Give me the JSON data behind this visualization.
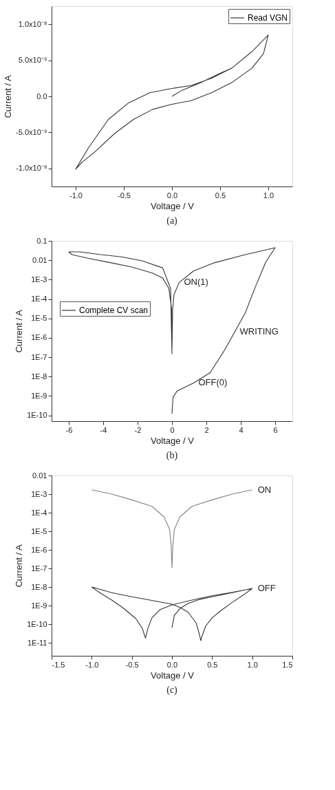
{
  "chart_data": [
    {
      "type": "line",
      "title": "(a)",
      "xlabel": "Voltage / V",
      "ylabel": "Current / A",
      "xlim": [
        -1.25,
        1.25
      ],
      "xticks": [
        {
          "value": -1,
          "label": "-1.0"
        },
        -0.5,
        {
          "value": 0,
          "label": "0.0"
        },
        0.5,
        {
          "value": 1,
          "label": "1.0"
        }
      ],
      "ylim": [
        -1.25e-08,
        1.25e-08
      ],
      "yticks": [
        {
          "value": -1e-08,
          "label": "-1.0x10⁻⁸"
        },
        {
          "value": -5e-09,
          "label": "-5.0x10⁻⁹"
        },
        {
          "value": 0,
          "label": "0.0"
        },
        {
          "value": 5e-09,
          "label": "5.0x10⁻⁹"
        },
        {
          "value": 1e-08,
          "label": "1.0x10⁻⁸"
        }
      ],
      "grid": false,
      "legend": "top right",
      "marker": "none",
      "line_style": "solid",
      "series": [
        {
          "name": "Read VGN",
          "color": "#333333",
          "x": [
            0,
            0.1,
            0.3,
            0.5,
            0.62,
            0.83,
            1,
            0.95,
            0.83,
            0.62,
            0.41,
            0.2,
            0,
            -0.2,
            -0.4,
            -0.6,
            -0.8,
            -0.93,
            -1,
            -0.87,
            -0.66,
            -0.45,
            -0.23,
            0,
            0.2,
            0.41,
            0.62,
            0.83,
            1
          ],
          "values": [
            0,
            8e-10,
            1.9e-09,
            3.2e-09,
            3.9e-09,
            6.2e-09,
            8.5e-09,
            5.9e-09,
            3.9e-09,
            1.9e-09,
            5e-10,
            -6e-10,
            -1.1e-09,
            -1.8e-09,
            -3.2e-09,
            -5.2e-09,
            -7.7e-09,
            -9.1e-09,
            -1.01e-08,
            -7.2e-09,
            -3.2e-09,
            -9e-10,
            5e-10,
            1.1e-09,
            1.5e-09,
            2.5e-09,
            3.9e-09,
            6.2e-09,
            8.5e-09
          ]
        }
      ]
    },
    {
      "type": "line",
      "title": "(b)",
      "xlabel": "Voltage / V",
      "ylabel": "Current / A",
      "log": "y",
      "xlim": [
        -7,
        7
      ],
      "xticks": [
        -6,
        -4,
        -2,
        0,
        2,
        4,
        6
      ],
      "ylim": [
        5e-11,
        0.1
      ],
      "yticks": [
        {
          "value": 1e-10,
          "label": "1E-10"
        },
        {
          "value": 1e-09,
          "label": "1E-9"
        },
        {
          "value": 1e-08,
          "label": "1E-8"
        },
        {
          "value": 1e-07,
          "label": "1E-7"
        },
        {
          "value": 1e-06,
          "label": "1E-6"
        },
        {
          "value": 1e-05,
          "label": "1E-5"
        },
        {
          "value": 0.0001,
          "label": "1E-4"
        },
        {
          "value": 0.001,
          "label": "1E-3"
        },
        {
          "value": 0.01,
          "label": "0.01"
        },
        {
          "value": 0.1,
          "label": "0.1"
        }
      ],
      "grid": false,
      "legend": "left",
      "marker": "none",
      "line_style": "solid",
      "annotations": [
        {
          "text": "ON(1)",
          "x": 0.42,
          "y": 0.00072
        },
        {
          "text": "WRITING",
          "x": 3.66,
          "y": 2.1e-06
        },
        {
          "text": "OFF(0)",
          "x": 1.26,
          "y": 4.7e-09
        }
      ],
      "series": [
        {
          "name": "Complete CV scan",
          "color": "#333333",
          "x": [
            0,
            0.06,
            0.3,
            1.26,
            2.22,
            3.06,
            3.66,
            4.26,
            4.86,
            5.46,
            6,
            4.26,
            2.46,
            1.26,
            0.42,
            0.12,
            0.04,
            0,
            0,
            -0.08,
            -0.54,
            -1.74,
            -2.94,
            -4.14,
            -5.34,
            -6,
            -5.82,
            -4.74,
            -3.54,
            -2.34,
            -1.14,
            -0.54,
            -0.18,
            -0.02,
            0
          ],
          "values": [
            1.2e-10,
            8.5e-10,
            1.8e-09,
            4.7e-09,
            1.6e-08,
            2.3e-07,
            2.1e-06,
            1.9e-05,
            0.00045,
            0.0083,
            0.044,
            0.0195,
            0.0074,
            0.0028,
            0.00072,
            0.00017,
            3e-05,
            3e-07,
            1.5e-07,
            0.00034,
            0.004,
            0.0093,
            0.015,
            0.0195,
            0.027,
            0.027,
            0.0195,
            0.012,
            0.0074,
            0.0045,
            0.0022,
            0.0012,
            0.00035,
            3e-05,
            3e-07
          ]
        }
      ]
    },
    {
      "type": "line",
      "title": "(c)",
      "xlabel": "Voltage / V",
      "ylabel": "Current / A",
      "log": "y",
      "xlim": [
        -1.5,
        1.5
      ],
      "xticks": [
        -1.5,
        {
          "value": -1,
          "label": "-1.0"
        },
        -0.5,
        {
          "value": 0,
          "label": "0.0"
        },
        0.5,
        {
          "value": 1,
          "label": "1.0"
        },
        1.5
      ],
      "ylim": [
        2e-12,
        0.01
      ],
      "yticks": [
        {
          "value": 1e-11,
          "label": "1E-11"
        },
        {
          "value": 1e-10,
          "label": "1E-10"
        },
        {
          "value": 1e-09,
          "label": "1E-9"
        },
        {
          "value": 1e-08,
          "label": "1E-8"
        },
        {
          "value": 1e-07,
          "label": "1E-7"
        },
        {
          "value": 1e-06,
          "label": "1E-6"
        },
        {
          "value": 1e-05,
          "label": "1E-5"
        },
        {
          "value": 0.0001,
          "label": "1E-4"
        },
        {
          "value": 0.001,
          "label": "1E-3"
        },
        {
          "value": 0.01,
          "label": "0.01"
        }
      ],
      "grid": false,
      "legend": false,
      "marker": "none",
      "line_style": "solid",
      "series": [
        {
          "name": "ON",
          "color": "#808080",
          "x": [
            -1,
            -0.75,
            -0.5,
            -0.25,
            -0.1,
            -0.03,
            -0.01,
            0,
            0.01,
            0.03,
            0.1,
            0.25,
            0.5,
            0.75,
            1
          ],
          "values": [
            0.0017,
            0.001,
            0.00049,
            0.00022,
            6e-05,
            1.3e-05,
            1.7e-06,
            1.1e-07,
            1.7e-06,
            1.3e-05,
            6e-05,
            0.00022,
            0.00049,
            0.001,
            0.0017
          ]
        },
        {
          "name": "OFF",
          "color": "#333333",
          "x": [
            0,
            0.03,
            0.1,
            0.2,
            0.35,
            0.5,
            0.75,
            1,
            0.9,
            0.75,
            0.6,
            0.5,
            0.42,
            0.37,
            0.36,
            0.34,
            0.3,
            0.2,
            0.1,
            0,
            -0.25,
            -0.5,
            -0.75,
            -1,
            -0.9,
            -0.75,
            -0.6,
            -0.45,
            -0.37,
            -0.33,
            -0.3,
            -0.25,
            -0.15,
            0,
            0.25,
            0.5,
            0.75,
            1
          ],
          "values": [
            6.6e-11,
            3e-10,
            7e-10,
            1.3e-09,
            2.2e-09,
            3e-09,
            5e-09,
            8.5e-09,
            4e-09,
            1.5e-09,
            5e-10,
            2.2e-10,
            8e-11,
            2e-11,
            1.3e-11,
            3e-11,
            1.2e-10,
            4.5e-10,
            8e-10,
            1.2e-09,
            1.9e-09,
            3e-09,
            5e-09,
            1e-08,
            5e-09,
            2e-09,
            7e-10,
            2e-10,
            6e-11,
            1.8e-11,
            6e-11,
            2.2e-10,
            6e-10,
            1.1e-09,
            2e-09,
            3.4e-09,
            5.2e-09,
            8.3e-09
          ]
        }
      ]
    }
  ]
}
